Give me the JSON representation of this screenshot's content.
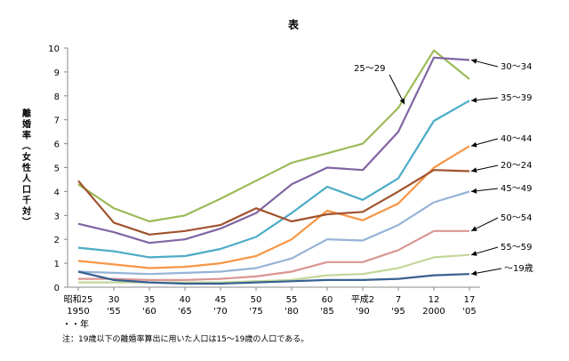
{
  "chart_data": {
    "type": "line",
    "title": "表",
    "ylabel": "離婚率（女性人口千対）",
    "xlabel": "",
    "ylim": [
      0,
      10
    ],
    "yticks": [
      0,
      1,
      2,
      3,
      4,
      5,
      6,
      7,
      8,
      9,
      10
    ],
    "grid": false,
    "legend": "labels at right end of lines",
    "x_unit_label": "・・年",
    "note": "注：19歳以下の離婚率算出に用いた人口は15～19歳の人口である。",
    "categories": [
      {
        "top": "昭和25",
        "bottom": "1950"
      },
      {
        "top": "30",
        "bottom": "'55"
      },
      {
        "top": "35",
        "bottom": "'60"
      },
      {
        "top": "40",
        "bottom": "'65"
      },
      {
        "top": "45",
        "bottom": "'70"
      },
      {
        "top": "50",
        "bottom": "'75"
      },
      {
        "top": "55",
        "bottom": "'80"
      },
      {
        "top": "60",
        "bottom": "'85"
      },
      {
        "top": "平成2",
        "bottom": "'90"
      },
      {
        "top": "7",
        "bottom": "'95"
      },
      {
        "top": "12",
        "bottom": "2000"
      },
      {
        "top": "17",
        "bottom": "'05"
      }
    ],
    "series": [
      {
        "name": "25～29",
        "color": "#9bbb59",
        "values": [
          4.3,
          3.3,
          2.75,
          3.0,
          3.7,
          4.45,
          5.2,
          5.6,
          6.0,
          7.5,
          9.9,
          8.7
        ]
      },
      {
        "name": "30～34",
        "color": "#8064a2",
        "values": [
          2.65,
          2.3,
          1.85,
          2.0,
          2.45,
          3.1,
          4.3,
          5.0,
          4.9,
          6.5,
          9.6,
          9.5
        ]
      },
      {
        "name": "35～39",
        "color": "#4bacc6",
        "values": [
          1.65,
          1.5,
          1.25,
          1.3,
          1.6,
          2.1,
          3.1,
          4.2,
          3.65,
          4.55,
          6.95,
          7.8
        ]
      },
      {
        "name": "40～44",
        "color": "#f79646",
        "values": [
          1.1,
          0.95,
          0.8,
          0.85,
          1.0,
          1.3,
          2.0,
          3.2,
          2.8,
          3.5,
          5.0,
          5.9
        ]
      },
      {
        "name": "20～24",
        "color": "#a0522d",
        "values": [
          4.45,
          2.7,
          2.2,
          2.35,
          2.6,
          3.3,
          2.75,
          3.05,
          3.15,
          4.0,
          4.9,
          4.85
        ]
      },
      {
        "name": "45～49",
        "color": "#95b3d7",
        "values": [
          0.65,
          0.6,
          0.55,
          0.6,
          0.65,
          0.8,
          1.2,
          2.0,
          1.95,
          2.6,
          3.55,
          4.0
        ]
      },
      {
        "name": "50～54",
        "color": "#d99694",
        "values": [
          0.35,
          0.35,
          0.3,
          0.3,
          0.35,
          0.45,
          0.65,
          1.05,
          1.05,
          1.55,
          2.35,
          2.35
        ]
      },
      {
        "name": "55～59",
        "color": "#c3d69b",
        "values": [
          0.2,
          0.2,
          0.2,
          0.2,
          0.2,
          0.25,
          0.3,
          0.5,
          0.55,
          0.8,
          1.25,
          1.35
        ]
      },
      {
        "name": "～19歳",
        "color": "#376092",
        "values": [
          0.65,
          0.3,
          0.2,
          0.15,
          0.15,
          0.2,
          0.25,
          0.3,
          0.3,
          0.35,
          0.5,
          0.55
        ]
      }
    ]
  }
}
